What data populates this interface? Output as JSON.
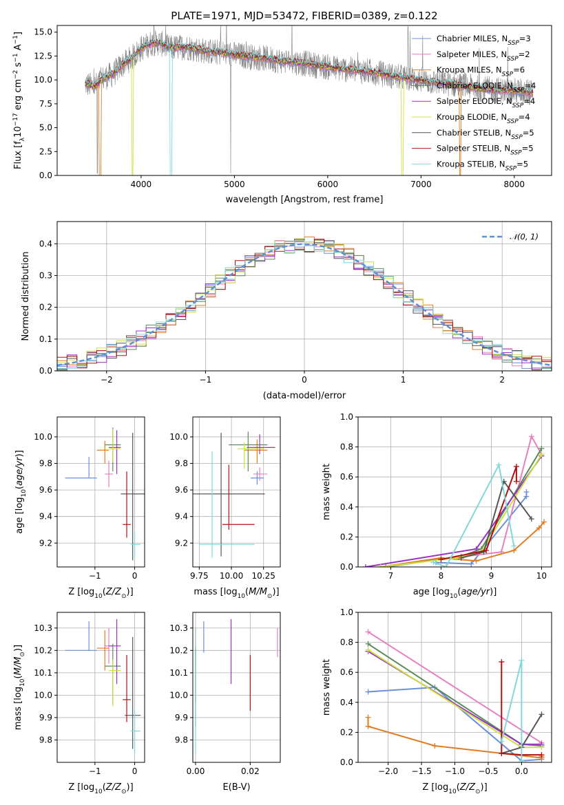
{
  "chart_data": [
    {
      "id": "spectrum",
      "type": "line",
      "title": "PLATE=1971, MJD=53472, FIBERID=0389, z=0.122",
      "xlabel": "wavelength [Angstrom, rest frame]",
      "ylabel": "Flux [fλ10⁻¹⁷ erg cm⁻² s⁻¹ A⁻¹]",
      "xlim": [
        3100,
        8400
      ],
      "ylim": [
        0,
        15.7
      ],
      "xticks": [
        4000,
        5000,
        6000,
        7000,
        8000
      ],
      "yticks": [
        0.0,
        2.5,
        5.0,
        7.5,
        10.0,
        12.5,
        15.0
      ],
      "grid": false,
      "legend_position": "top-right",
      "data_trend": {
        "x": [
          3400,
          3500,
          3600,
          3700,
          3800,
          3900,
          4000,
          4100,
          4200,
          4300,
          4400,
          4500,
          4700,
          4900,
          5100,
          5300,
          5500,
          5700,
          5900,
          6100,
          6300,
          6500,
          6700,
          6900,
          7100,
          7300,
          7500,
          7700,
          7900,
          8100,
          8200
        ],
        "y": [
          9.6,
          9.3,
          10.2,
          10.6,
          11.6,
          12.3,
          13.3,
          13.8,
          13.9,
          13.3,
          13.4,
          13.4,
          13.0,
          12.8,
          12.5,
          12.3,
          12.0,
          11.8,
          11.5,
          11.2,
          11.0,
          10.8,
          10.4,
          10.1,
          9.8,
          9.6,
          9.3,
          9.0,
          8.9,
          8.8,
          8.6
        ]
      },
      "series": [
        {
          "name": "Chabrier MILES, N_SSP=3",
          "color": "#6b8fd8"
        },
        {
          "name": "Salpeter MILES, N_SSP=2",
          "color": "#e87fbf"
        },
        {
          "name": "Kroupa MILES, N_SSP=6",
          "color": "#e07b20"
        },
        {
          "name": "Chabrier ELODIE, N_SSP=4",
          "color": "#5a8a5a"
        },
        {
          "name": "Salpeter ELODIE, N_SSP=4",
          "color": "#9b30c8"
        },
        {
          "name": "Kroupa ELODIE, N_SSP=4",
          "color": "#cce040"
        },
        {
          "name": "Chabrier STELIB, N_SSP=5",
          "color": "#555555"
        },
        {
          "name": "Salpeter STELIB, N_SSP=5",
          "color": "#b01010"
        },
        {
          "name": "Kroupa STELIB, N_SSP=5",
          "color": "#80d8d8"
        }
      ],
      "observed_color": "#808080"
    },
    {
      "id": "residuals",
      "type": "line",
      "xlabel": "(data-model)/error",
      "ylabel": "Normed distribution",
      "xlim": [
        -2.5,
        2.5
      ],
      "ylim": [
        0,
        0.47
      ],
      "xticks": [
        -2,
        -1,
        0,
        1,
        2
      ],
      "yticks": [
        0.0,
        0.1,
        0.2,
        0.3,
        0.4
      ],
      "grid": true,
      "legend_position": "top-right",
      "reference": {
        "name": "𝒩(0, 1)",
        "mu": 0,
        "sigma": 1,
        "color": "#5b8fd6"
      },
      "bin_width": 0.1
    },
    {
      "id": "age-vs-Z",
      "type": "scatter",
      "xlabel": "Z [log10(Z/Z⊙)]",
      "ylabel": "age [log10(age/yr)]",
      "xlim": [
        -1.95,
        0.25
      ],
      "ylim": [
        9.02,
        10.15
      ],
      "xticks": [
        -1,
        0
      ],
      "yticks": [
        9.2,
        9.4,
        9.6,
        9.8,
        10.0
      ],
      "grid": true,
      "points": [
        {
          "series": "Chabrier MILES",
          "x": -1.15,
          "y": 9.69,
          "xerr": [
            0.6,
            0.2
          ],
          "yerr": [
            0.0,
            0.16
          ],
          "color": "#6b8fd8"
        },
        {
          "series": "Salpeter MILES",
          "x": -0.65,
          "y": 9.72,
          "xerr": [
            0.1,
            0.1
          ],
          "yerr": [
            0.1,
            0.1
          ],
          "color": "#e87fbf"
        },
        {
          "series": "Kroupa MILES",
          "x": -0.75,
          "y": 9.9,
          "xerr": [
            0.2,
            0.1
          ],
          "yerr": [
            0.1,
            0.07
          ],
          "color": "#e07b20"
        },
        {
          "series": "Chabrier ELODIE",
          "x": -0.55,
          "y": 9.94,
          "xerr": [
            0.2,
            0.2
          ],
          "yerr": [
            0.2,
            0.13
          ],
          "color": "#5a8a5a"
        },
        {
          "series": "Salpeter ELODIE",
          "x": -0.45,
          "y": 9.92,
          "xerr": [
            0.2,
            0.1
          ],
          "yerr": [
            0.2,
            0.13
          ],
          "color": "#9b30c8"
        },
        {
          "series": "Kroupa ELODIE",
          "x": -0.55,
          "y": 9.91,
          "xerr": [
            0.1,
            0.2
          ],
          "yerr": [
            0.1,
            0.15
          ],
          "color": "#cce040"
        },
        {
          "series": "Chabrier STELIB",
          "x": -0.05,
          "y": 9.57,
          "xerr": [
            0.3,
            0.3
          ],
          "yerr": [
            0.5,
            0.46
          ],
          "color": "#555555"
        },
        {
          "series": "Salpeter STELIB",
          "x": -0.2,
          "y": 9.34,
          "xerr": [
            0.1,
            0.1
          ],
          "yerr": [
            0.1,
            0.4
          ],
          "color": "#b01010"
        },
        {
          "series": "Kroupa STELIB",
          "x": 0.0,
          "y": 9.19,
          "xerr": [
            0.1,
            0.15
          ],
          "yerr": [
            0.1,
            0.1
          ],
          "color": "#80d8d8"
        }
      ]
    },
    {
      "id": "age-vs-mass",
      "type": "scatter",
      "xlabel": "mass [log10(M/M⊙)]",
      "ylabel": "",
      "xlim": [
        9.7,
        10.38
      ],
      "ylim": [
        9.02,
        10.15
      ],
      "xticks": [
        9.75,
        10.0,
        10.25
      ],
      "yticks": [
        9.2,
        9.4,
        9.6,
        9.8,
        10.0
      ],
      "grid": true,
      "points": [
        {
          "series": "Chabrier MILES",
          "x": 10.2,
          "y": 9.69,
          "xerr": [
            0.05,
            0.05
          ],
          "yerr": [
            0.05,
            0.05
          ],
          "color": "#6b8fd8"
        },
        {
          "series": "Salpeter MILES",
          "x": 10.22,
          "y": 9.72,
          "xerr": [
            0.05,
            0.06
          ],
          "yerr": [
            0.05,
            0.05
          ],
          "color": "#e87fbf"
        },
        {
          "series": "Kroupa MILES",
          "x": 10.2,
          "y": 9.9,
          "xerr": [
            0.1,
            0.08
          ],
          "yerr": [
            0.1,
            0.08
          ],
          "color": "#e07b20"
        },
        {
          "series": "Chabrier ELODIE",
          "x": 10.13,
          "y": 9.94,
          "xerr": [
            0.15,
            0.15
          ],
          "yerr": [
            0.2,
            0.1
          ],
          "color": "#5a8a5a"
        },
        {
          "series": "Salpeter ELODIE",
          "x": 10.22,
          "y": 9.92,
          "xerr": [
            0.1,
            0.12
          ],
          "yerr": [
            0.05,
            0.1
          ],
          "color": "#9b30c8"
        },
        {
          "series": "Kroupa ELODIE",
          "x": 10.1,
          "y": 9.91,
          "xerr": [
            0.05,
            0.15
          ],
          "yerr": [
            0.15,
            0.05
          ],
          "color": "#cce040"
        },
        {
          "series": "Chabrier STELIB",
          "x": 9.92,
          "y": 9.57,
          "xerr": [
            0.35,
            0.34
          ],
          "yerr": [
            0.47,
            0.46
          ],
          "color": "#555555"
        },
        {
          "series": "Salpeter STELIB",
          "x": 9.98,
          "y": 9.34,
          "xerr": [
            0.05,
            0.2
          ],
          "yerr": [
            0.04,
            0.45
          ],
          "color": "#b01010"
        },
        {
          "series": "Kroupa STELIB",
          "x": 9.85,
          "y": 9.19,
          "xerr": [
            0.1,
            0.33
          ],
          "yerr": [
            0.1,
            0.7
          ],
          "color": "#80d8d8"
        }
      ]
    },
    {
      "id": "massweight-vs-age",
      "type": "line",
      "xlabel": "age [log10(age/yr)]",
      "ylabel": "mass weight",
      "xlim": [
        6.35,
        10.2
      ],
      "ylim": [
        0,
        1.0
      ],
      "xticks": [
        7,
        8,
        9,
        10
      ],
      "yticks": [
        0.0,
        0.2,
        0.4,
        0.6,
        0.8,
        1.0
      ],
      "grid": true,
      "series": [
        {
          "name": "Chabrier MILES",
          "color": "#6b8fd8",
          "x": [
            7.9,
            8.6,
            9.7,
            9.7
          ],
          "y": [
            0.03,
            0.02,
            0.47,
            0.5
          ]
        },
        {
          "name": "Salpeter MILES",
          "color": "#e87fbf",
          "x": [
            6.8,
            9.2,
            9.8,
            10.0
          ],
          "y": [
            0.0,
            0.1,
            0.87,
            0.75
          ]
        },
        {
          "name": "Kroupa MILES",
          "color": "#e07b20",
          "x": [
            6.8,
            8.0,
            8.7,
            9.45,
            9.95,
            10.05
          ],
          "y": [
            0.0,
            0.06,
            0.04,
            0.11,
            0.26,
            0.3
          ]
        },
        {
          "name": "Chabrier ELODIE",
          "color": "#5a8a5a",
          "x": [
            6.9,
            8.4,
            8.8,
            10.0
          ],
          "y": [
            0.0,
            0.07,
            0.12,
            0.79
          ]
        },
        {
          "name": "Salpeter ELODIE",
          "color": "#9b30c8",
          "x": [
            6.5,
            8.7,
            10.0
          ],
          "y": [
            0.0,
            0.12,
            0.74
          ]
        },
        {
          "name": "Kroupa ELODIE",
          "color": "#cce040",
          "x": [
            6.8,
            8.3,
            8.8,
            10.0
          ],
          "y": [
            0.0,
            0.06,
            0.1,
            0.75
          ]
        },
        {
          "name": "Chabrier STELIB",
          "color": "#555555",
          "x": [
            8.4,
            8.85,
            9.25,
            9.8
          ],
          "y": [
            0.06,
            0.1,
            0.57,
            0.32
          ]
        },
        {
          "name": "Salpeter STELIB",
          "color": "#b01010",
          "x": [
            8.0,
            8.9,
            9.5,
            9.5
          ],
          "y": [
            0.05,
            0.11,
            0.67,
            0.57
          ]
        },
        {
          "name": "Kroupa STELIB",
          "color": "#80d8d8",
          "x": [
            7.85,
            8.1,
            9.15,
            9.45
          ],
          "y": [
            0.03,
            0.0,
            0.68,
            0.14
          ]
        }
      ]
    },
    {
      "id": "mass-vs-Z",
      "type": "scatter",
      "xlabel": "Z [log10(Z/Z⊙)]",
      "ylabel": "mass [log10(M/M⊙)]",
      "xlim": [
        -1.95,
        0.25
      ],
      "ylim": [
        9.7,
        10.37
      ],
      "xticks": [
        -1,
        0
      ],
      "yticks": [
        9.8,
        9.9,
        10.0,
        10.1,
        10.2,
        10.3
      ],
      "grid": true,
      "points": [
        {
          "series": "Chabrier MILES",
          "x": -1.15,
          "y": 10.2,
          "xerr": [
            0.6,
            0.2
          ],
          "yerr": [
            0.0,
            0.13
          ],
          "color": "#6b8fd8"
        },
        {
          "series": "Salpeter MILES",
          "x": -0.65,
          "y": 10.22,
          "xerr": [
            0.1,
            0.1
          ],
          "yerr": [
            0.08,
            0.08
          ],
          "color": "#e87fbf"
        },
        {
          "series": "Kroupa MILES",
          "x": -0.75,
          "y": 10.21,
          "xerr": [
            0.2,
            0.1
          ],
          "yerr": [
            0.1,
            0.08
          ],
          "color": "#e07b20"
        },
        {
          "series": "Chabrier ELODIE",
          "x": -0.55,
          "y": 10.13,
          "xerr": [
            0.2,
            0.2
          ],
          "yerr": [
            0.17,
            0.1
          ],
          "color": "#5a8a5a"
        },
        {
          "series": "Salpeter ELODIE",
          "x": -0.45,
          "y": 10.22,
          "xerr": [
            0.2,
            0.1
          ],
          "yerr": [
            0.17,
            0.12
          ],
          "color": "#9b30c8"
        },
        {
          "series": "Kroupa ELODIE",
          "x": -0.55,
          "y": 10.11,
          "xerr": [
            0.1,
            0.2
          ],
          "yerr": [
            0.16,
            0.05
          ],
          "color": "#cce040"
        },
        {
          "series": "Chabrier STELIB",
          "x": -0.05,
          "y": 9.91,
          "xerr": [
            0.2,
            0.2
          ],
          "yerr": [
            0.15,
            0.35
          ],
          "color": "#555555"
        },
        {
          "series": "Salpeter STELIB",
          "x": -0.2,
          "y": 9.98,
          "xerr": [
            0.1,
            0.1
          ],
          "yerr": [
            0.1,
            0.2
          ],
          "color": "#b01010"
        },
        {
          "series": "Kroupa STELIB",
          "x": 0.0,
          "y": 9.84,
          "xerr": [
            0.1,
            0.15
          ],
          "yerr": [
            0.1,
            0.1
          ],
          "color": "#80d8d8"
        }
      ]
    },
    {
      "id": "mass-vs-EBV",
      "type": "scatter",
      "xlabel": "E(B-V)",
      "ylabel": "",
      "xlim": [
        -0.001,
        0.031
      ],
      "ylim": [
        9.7,
        10.37
      ],
      "xticks": [
        0.0,
        0.02
      ],
      "yticks": [
        9.8,
        9.9,
        10.0,
        10.1,
        10.2,
        10.3
      ],
      "grid": true,
      "points": [
        {
          "series": "Chabrier MILES",
          "x": 0.003,
          "y": 10.24,
          "yerr": [
            0.05,
            0.09
          ],
          "color": "#6b8fd8"
        },
        {
          "series": "Salpeter MILES",
          "x": 0.03,
          "y": 10.24,
          "yerr": [
            0.07,
            0.06
          ],
          "color": "#e87fbf"
        },
        {
          "series": "Kroupa MILES",
          "x": 0.0,
          "y": 10.22,
          "yerr": [
            0.1,
            0.08
          ],
          "color": "#e07b20"
        },
        {
          "series": "Chabrier ELODIE",
          "x": 0.0,
          "y": 10.12,
          "yerr": [
            0.15,
            0.1
          ],
          "color": "#5a8a5a"
        },
        {
          "series": "Salpeter ELODIE",
          "x": 0.013,
          "y": 10.2,
          "yerr": [
            0.15,
            0.14
          ],
          "color": "#9b30c8"
        },
        {
          "series": "Kroupa ELODIE",
          "x": 0.0,
          "y": 10.11,
          "yerr": [
            0.15,
            0.08
          ],
          "color": "#cce040"
        },
        {
          "series": "Chabrier STELIB",
          "x": 0.0,
          "y": 10.06,
          "yerr": [
            0.2,
            0.15
          ],
          "color": "#555555"
        },
        {
          "series": "Salpeter STELIB",
          "x": 0.02,
          "y": 10.06,
          "yerr": [
            0.13,
            0.12
          ],
          "color": "#b01010"
        },
        {
          "series": "Kroupa STELIB",
          "x": 0.0,
          "y": 9.9,
          "yerr": [
            0.16,
            0.4
          ],
          "color": "#80d8d8"
        }
      ]
    },
    {
      "id": "massweight-vs-Z",
      "type": "line",
      "xlabel": "Z [log10(Z/Z⊙)]",
      "ylabel": "mass weight",
      "xlim": [
        -2.45,
        0.45
      ],
      "ylim": [
        0,
        1.0
      ],
      "xticks": [
        -2.0,
        -1.5,
        -1.0,
        -0.5,
        0.0
      ],
      "yticks": [
        0.0,
        0.2,
        0.4,
        0.6,
        0.8,
        1.0
      ],
      "grid": true,
      "series": [
        {
          "name": "Chabrier MILES",
          "color": "#6b8fd8",
          "x": [
            -2.3,
            -1.3,
            0.0,
            0.3
          ],
          "y": [
            0.47,
            0.5,
            0.01,
            0.02
          ]
        },
        {
          "name": "Salpeter MILES",
          "color": "#e87fbf",
          "x": [
            -2.3,
            0.3
          ],
          "y": [
            0.87,
            0.13
          ]
        },
        {
          "name": "Kroupa MILES",
          "color": "#e07b20",
          "x": [
            -2.3,
            -2.3,
            -1.3,
            -0.3,
            0.3,
            0.3
          ],
          "y": [
            0.3,
            0.24,
            0.11,
            0.06,
            0.03,
            0.04
          ]
        },
        {
          "name": "Chabrier ELODIE",
          "color": "#5a8a5a",
          "x": [
            -2.3,
            0.0,
            0.3
          ],
          "y": [
            0.79,
            0.12,
            0.11
          ]
        },
        {
          "name": "Salpeter ELODIE",
          "color": "#9b30c8",
          "x": [
            -2.3,
            0.0,
            0.3
          ],
          "y": [
            0.74,
            0.12,
            0.12
          ]
        },
        {
          "name": "Kroupa ELODIE",
          "color": "#cce040",
          "x": [
            -2.3,
            0.0,
            0.3
          ],
          "y": [
            0.75,
            0.1,
            0.1
          ]
        },
        {
          "name": "Chabrier STELIB",
          "color": "#555555",
          "x": [
            -0.3,
            0.0,
            0.3
          ],
          "y": [
            0.06,
            0.1,
            0.32
          ]
        },
        {
          "name": "Salpeter STELIB",
          "color": "#b01010",
          "x": [
            -0.3,
            -0.3,
            0.0,
            0.3
          ],
          "y": [
            0.67,
            0.06,
            0.05,
            0.05
          ]
        },
        {
          "name": "Kroupa STELIB",
          "color": "#80d8d8",
          "x": [
            -0.3,
            0.0,
            0.0
          ],
          "y": [
            0.14,
            0.68,
            0.01
          ]
        }
      ]
    }
  ]
}
